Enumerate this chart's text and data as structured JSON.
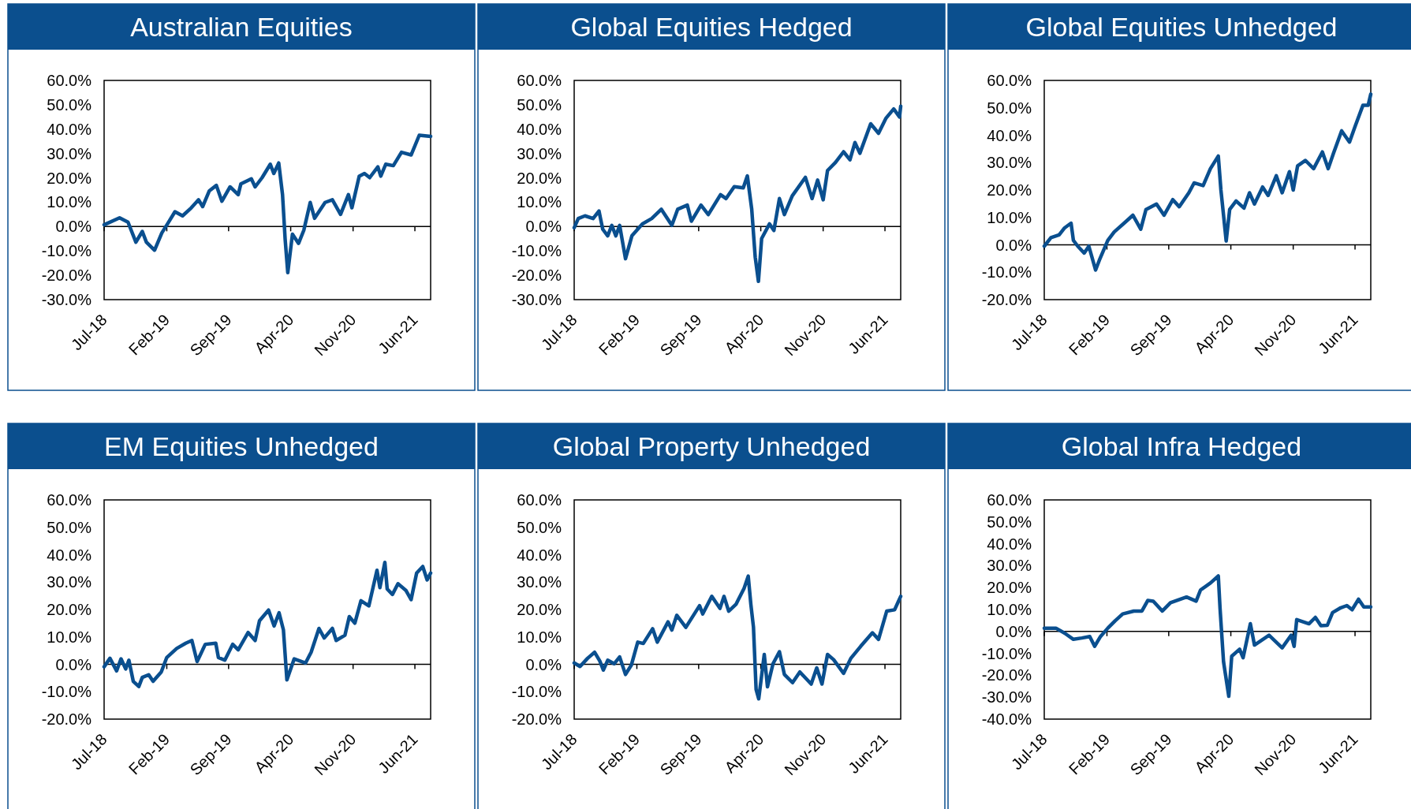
{
  "chart_data": [
    {
      "type": "line",
      "title": "Australian Equities",
      "xlim": [
        "2018-07-01",
        "2021-07-25"
      ],
      "ylim": [
        -30,
        60
      ],
      "xticks": [
        {
          "value": "2018-07-01",
          "label": "Jul-18"
        },
        {
          "value": "2019-02-01",
          "label": "Feb-19"
        },
        {
          "value": "2019-09-01",
          "label": "Sep-19"
        },
        {
          "value": "2020-04-01",
          "label": "Apr-20"
        },
        {
          "value": "2020-11-01",
          "label": "Nov-20"
        },
        {
          "value": "2021-06-01",
          "label": "Jun-21"
        }
      ],
      "yticks": [
        {
          "value": -30,
          "label": "-30.0%"
        },
        {
          "value": -20,
          "label": "-20.0%"
        },
        {
          "value": -10,
          "label": "-10.0%"
        },
        {
          "value": 0,
          "label": "0.0%"
        },
        {
          "value": 10,
          "label": "10.0%"
        },
        {
          "value": 20,
          "label": "20.0%"
        },
        {
          "value": 30,
          "label": "30.0%"
        },
        {
          "value": 40,
          "label": "40.0%"
        },
        {
          "value": 50,
          "label": "50.0%"
        },
        {
          "value": 60,
          "label": "60.0%"
        }
      ],
      "x": [
        "2018-07-01",
        "2018-08-23",
        "2018-09-21",
        "2018-10-18",
        "2018-11-09",
        "2018-11-23",
        "2018-12-21",
        "2019-01-15",
        "2019-02-04",
        "2019-03-01",
        "2019-03-27",
        "2019-04-26",
        "2019-05-21",
        "2019-06-04",
        "2019-06-27",
        "2019-07-21",
        "2019-08-09",
        "2019-09-06",
        "2019-10-04",
        "2019-10-13",
        "2019-11-18",
        "2019-12-01",
        "2019-12-25",
        "2020-01-22",
        "2020-02-03",
        "2020-02-20",
        "2020-03-04",
        "2020-03-13",
        "2020-03-22",
        "2020-04-07",
        "2020-04-28",
        "2020-05-16",
        "2020-06-07",
        "2020-06-22",
        "2020-07-28",
        "2020-08-22",
        "2020-09-19",
        "2020-10-16",
        "2020-10-28",
        "2020-11-22",
        "2020-12-10",
        "2020-12-28",
        "2021-01-25",
        "2021-02-04",
        "2021-02-21",
        "2021-03-19",
        "2021-04-16",
        "2021-05-19",
        "2021-06-16",
        "2021-07-25"
      ],
      "series": [
        {
          "color": "#0a4f8f",
          "values": [
            0.7,
            3.6,
            1.8,
            -6.4,
            -2,
            -6.4,
            -9.7,
            -2.6,
            1.2,
            6.1,
            4.4,
            7.7,
            11,
            8.2,
            14.7,
            16.9,
            10.4,
            16.3,
            13.1,
            17.5,
            19.6,
            16.3,
            20.1,
            25.6,
            21.8,
            26.1,
            13.1,
            -5.3,
            -18.9,
            -3.1,
            -6.9,
            -1.5,
            9.9,
            3.4,
            9.9,
            11,
            5,
            13.1,
            7.7,
            20.7,
            21.8,
            20.1,
            24.5,
            20.7,
            25.6,
            25,
            30.5,
            29.4,
            37.5,
            37
          ]
        }
      ]
    },
    {
      "type": "line",
      "title": "Global Equities Hedged",
      "xlim": [
        "2018-07-01",
        "2021-07-25"
      ],
      "ylim": [
        -30,
        60
      ],
      "xticks": [
        {
          "value": "2018-07-01",
          "label": "Jul-18"
        },
        {
          "value": "2019-02-01",
          "label": "Feb-19"
        },
        {
          "value": "2019-09-01",
          "label": "Sep-19"
        },
        {
          "value": "2020-04-01",
          "label": "Apr-20"
        },
        {
          "value": "2020-11-01",
          "label": "Nov-20"
        },
        {
          "value": "2021-06-01",
          "label": "Jun-21"
        }
      ],
      "yticks": [
        {
          "value": -30,
          "label": "-30.0%"
        },
        {
          "value": -20,
          "label": "-20.0%"
        },
        {
          "value": -10,
          "label": "-10.0%"
        },
        {
          "value": 0,
          "label": "0.0%"
        },
        {
          "value": 10,
          "label": "10.0%"
        },
        {
          "value": 20,
          "label": "20.0%"
        },
        {
          "value": 30,
          "label": "30.0%"
        },
        {
          "value": 40,
          "label": "40.0%"
        },
        {
          "value": 50,
          "label": "50.0%"
        },
        {
          "value": 60,
          "label": "60.0%"
        }
      ],
      "x": [
        "2018-07-01",
        "2018-07-15",
        "2018-08-07",
        "2018-09-04",
        "2018-09-24",
        "2018-10-07",
        "2018-10-24",
        "2018-11-07",
        "2018-11-21",
        "2018-12-04",
        "2018-12-24",
        "2019-01-15",
        "2019-02-20",
        "2019-03-24",
        "2019-04-26",
        "2019-06-01",
        "2019-06-21",
        "2019-07-24",
        "2019-08-07",
        "2019-09-09",
        "2019-10-04",
        "2019-11-15",
        "2019-12-04",
        "2020-01-01",
        "2020-02-01",
        "2020-02-15",
        "2020-03-01",
        "2020-03-13",
        "2020-03-24",
        "2020-04-04",
        "2020-05-01",
        "2020-05-16",
        "2020-06-04",
        "2020-06-21",
        "2020-07-18",
        "2020-09-01",
        "2020-09-24",
        "2020-10-13",
        "2020-11-01",
        "2020-11-16",
        "2020-12-13",
        "2021-01-10",
        "2021-02-01",
        "2021-02-18",
        "2021-03-07",
        "2021-04-13",
        "2021-05-10",
        "2021-06-04",
        "2021-07-01",
        "2021-07-21",
        "2021-07-25"
      ],
      "series": [
        {
          "color": "#0a4f8f",
          "values": [
            -0.5,
            3.3,
            4.4,
            3.3,
            6.4,
            -1.1,
            -3.8,
            0.5,
            -3.8,
            0.5,
            -13.2,
            -3.8,
            1.1,
            3.3,
            7.1,
            0.5,
            7.1,
            8.8,
            2.2,
            8.8,
            4.9,
            13.1,
            11.5,
            16.4,
            15.9,
            20.8,
            7.1,
            -12.6,
            -22.5,
            -4.9,
            1.1,
            -1.6,
            11.5,
            4.9,
            12.6,
            20.2,
            11.5,
            19.1,
            11,
            23,
            26.3,
            30.7,
            27.4,
            34.5,
            30.1,
            42.2,
            38.3,
            44.4,
            48.3,
            45,
            49.4
          ]
        }
      ]
    },
    {
      "type": "line",
      "title": "Global Equities Unhedged",
      "xlim": [
        "2018-07-01",
        "2021-07-25"
      ],
      "ylim": [
        -20,
        60
      ],
      "xticks": [
        {
          "value": "2018-07-01",
          "label": "Jul-18"
        },
        {
          "value": "2019-02-01",
          "label": "Feb-19"
        },
        {
          "value": "2019-09-01",
          "label": "Sep-19"
        },
        {
          "value": "2020-04-01",
          "label": "Apr-20"
        },
        {
          "value": "2020-11-01",
          "label": "Nov-20"
        },
        {
          "value": "2021-06-01",
          "label": "Jun-21"
        }
      ],
      "yticks": [
        {
          "value": -20,
          "label": "-20.0%"
        },
        {
          "value": -10,
          "label": "-10.0%"
        },
        {
          "value": 0,
          "label": "0.0%"
        },
        {
          "value": 10,
          "label": "10.0%"
        },
        {
          "value": 20,
          "label": "20.0%"
        },
        {
          "value": 30,
          "label": "30.0%"
        },
        {
          "value": 40,
          "label": "40.0%"
        },
        {
          "value": 50,
          "label": "50.0%"
        },
        {
          "value": 60,
          "label": "60.0%"
        }
      ],
      "x": [
        "2018-07-01",
        "2018-07-24",
        "2018-08-21",
        "2018-09-09",
        "2018-10-01",
        "2018-10-09",
        "2018-10-24",
        "2018-11-15",
        "2018-12-01",
        "2018-12-24",
        "2019-01-06",
        "2019-02-04",
        "2019-02-26",
        "2019-04-01",
        "2019-05-01",
        "2019-05-28",
        "2019-06-15",
        "2019-07-21",
        "2019-08-16",
        "2019-09-15",
        "2019-10-07",
        "2019-11-09",
        "2019-11-27",
        "2019-12-28",
        "2020-01-22",
        "2020-02-18",
        "2020-02-27",
        "2020-03-07",
        "2020-03-16",
        "2020-03-28",
        "2020-04-19",
        "2020-05-16",
        "2020-06-04",
        "2020-06-21",
        "2020-07-19",
        "2020-08-07",
        "2020-09-04",
        "2020-09-24",
        "2020-10-19",
        "2020-11-01",
        "2020-11-16",
        "2020-12-13",
        "2021-01-10",
        "2021-02-09",
        "2021-03-01",
        "2021-03-19",
        "2021-04-16",
        "2021-05-13",
        "2021-06-01",
        "2021-06-28",
        "2021-07-16",
        "2021-07-25"
      ],
      "series": [
        {
          "color": "#0a4f8f",
          "values": [
            -0.5,
            2.6,
            3.6,
            6.2,
            7.9,
            1.6,
            -0.5,
            -3,
            -0.5,
            -9.2,
            -5.6,
            1.6,
            4.7,
            7.9,
            10.8,
            5.7,
            12.9,
            14.9,
            10.8,
            16.5,
            13.9,
            19,
            22.6,
            21.6,
            27.8,
            32.4,
            20,
            10.8,
            1.4,
            12.9,
            16,
            13.4,
            19,
            14.9,
            21.1,
            18,
            25.2,
            19,
            26.7,
            20,
            28.8,
            30.8,
            27.8,
            33.9,
            27.8,
            33.4,
            41.6,
            37.5,
            43.2,
            50.9,
            50.9,
            55
          ]
        }
      ]
    },
    {
      "type": "line",
      "title": "EM Equities Unhedged",
      "xlim": [
        "2018-07-01",
        "2021-07-25"
      ],
      "ylim": [
        -20,
        60
      ],
      "xticks": [
        {
          "value": "2018-07-01",
          "label": "Jul-18"
        },
        {
          "value": "2019-02-01",
          "label": "Feb-19"
        },
        {
          "value": "2019-09-01",
          "label": "Sep-19"
        },
        {
          "value": "2020-04-01",
          "label": "Apr-20"
        },
        {
          "value": "2020-11-01",
          "label": "Nov-20"
        },
        {
          "value": "2021-06-01",
          "label": "Jun-21"
        }
      ],
      "yticks": [
        {
          "value": -20,
          "label": "-20.0%"
        },
        {
          "value": -10,
          "label": "-10.0%"
        },
        {
          "value": 0,
          "label": "0.0%"
        },
        {
          "value": 10,
          "label": "10.0%"
        },
        {
          "value": 20,
          "label": "20.0%"
        },
        {
          "value": 30,
          "label": "30.0%"
        },
        {
          "value": 40,
          "label": "40.0%"
        },
        {
          "value": 50,
          "label": "50.0%"
        },
        {
          "value": 60,
          "label": "60.0%"
        }
      ],
      "x": [
        "2018-07-01",
        "2018-07-21",
        "2018-08-13",
        "2018-08-28",
        "2018-09-13",
        "2018-09-24",
        "2018-10-09",
        "2018-10-28",
        "2018-11-09",
        "2018-12-01",
        "2018-12-16",
        "2019-01-13",
        "2019-02-01",
        "2019-03-07",
        "2019-04-07",
        "2019-04-28",
        "2019-05-16",
        "2019-06-13",
        "2019-07-19",
        "2019-07-28",
        "2019-08-19",
        "2019-09-15",
        "2019-10-04",
        "2019-11-07",
        "2019-12-01",
        "2019-12-16",
        "2020-01-16",
        "2020-02-04",
        "2020-02-21",
        "2020-03-07",
        "2020-03-19",
        "2020-04-13",
        "2020-05-22",
        "2020-06-10",
        "2020-07-07",
        "2020-07-25",
        "2020-08-22",
        "2020-09-04",
        "2020-10-04",
        "2020-10-19",
        "2020-11-07",
        "2020-11-28",
        "2020-12-25",
        "2021-01-22",
        "2021-02-01",
        "2021-02-18",
        "2021-02-26",
        "2021-03-16",
        "2021-04-04",
        "2021-05-01",
        "2021-05-19",
        "2021-06-07",
        "2021-06-28",
        "2021-07-13",
        "2021-07-25"
      ],
      "series": [
        {
          "color": "#0a4f8f",
          "values": [
            -0.9,
            2.2,
            -2.4,
            2,
            -1.7,
            1.5,
            -6.2,
            -8.1,
            -4.8,
            -3.8,
            -6.2,
            -2.8,
            2.5,
            5.8,
            7.7,
            8.7,
            1,
            7.3,
            7.7,
            2.5,
            1.5,
            7.3,
            5.3,
            11.6,
            8.7,
            15.9,
            19.8,
            14,
            18.8,
            12.6,
            -5.7,
            2,
            0.5,
            4.4,
            13.1,
            9.6,
            13.1,
            8.7,
            10.6,
            17.4,
            15,
            23.2,
            21.3,
            34.3,
            28,
            37.2,
            27.5,
            25.5,
            29.4,
            27,
            23.6,
            33.3,
            35.7,
            30.8,
            33.3
          ]
        }
      ]
    },
    {
      "type": "line",
      "title": "Global Property Unhedged",
      "xlim": [
        "2018-07-01",
        "2021-07-25"
      ],
      "ylim": [
        -20,
        60
      ],
      "xticks": [
        {
          "value": "2018-07-01",
          "label": "Jul-18"
        },
        {
          "value": "2019-02-01",
          "label": "Feb-19"
        },
        {
          "value": "2019-09-01",
          "label": "Sep-19"
        },
        {
          "value": "2020-04-01",
          "label": "Apr-20"
        },
        {
          "value": "2020-11-01",
          "label": "Nov-20"
        },
        {
          "value": "2021-06-01",
          "label": "Jun-21"
        }
      ],
      "yticks": [
        {
          "value": -20,
          "label": "-20.0%"
        },
        {
          "value": -10,
          "label": "-10.0%"
        },
        {
          "value": 0,
          "label": "0.0%"
        },
        {
          "value": 10,
          "label": "10.0%"
        },
        {
          "value": 20,
          "label": "20.0%"
        },
        {
          "value": 30,
          "label": "30.0%"
        },
        {
          "value": 40,
          "label": "40.0%"
        },
        {
          "value": 50,
          "label": "50.0%"
        },
        {
          "value": 60,
          "label": "60.0%"
        }
      ],
      "x": [
        "2018-07-01",
        "2018-07-21",
        "2018-08-16",
        "2018-09-09",
        "2018-09-27",
        "2018-10-09",
        "2018-10-24",
        "2018-11-15",
        "2018-12-04",
        "2018-12-24",
        "2019-01-13",
        "2019-02-04",
        "2019-02-23",
        "2019-03-27",
        "2019-04-12",
        "2019-05-19",
        "2019-06-01",
        "2019-06-18",
        "2019-07-19",
        "2019-09-04",
        "2019-09-15",
        "2019-10-16",
        "2019-11-13",
        "2019-11-27",
        "2019-12-13",
        "2020-01-07",
        "2020-02-04",
        "2020-02-18",
        "2020-02-27",
        "2020-03-07",
        "2020-03-16",
        "2020-03-25",
        "2020-04-13",
        "2020-04-24",
        "2020-05-13",
        "2020-06-04",
        "2020-06-21",
        "2020-07-19",
        "2020-08-13",
        "2020-09-21",
        "2020-10-10",
        "2020-10-28",
        "2020-11-16",
        "2020-12-07",
        "2021-01-10",
        "2021-02-04",
        "2021-03-10",
        "2021-04-19",
        "2021-05-10",
        "2021-06-07",
        "2021-07-04",
        "2021-07-25"
      ],
      "series": [
        {
          "color": "#0a4f8f",
          "values": [
            0.5,
            -0.8,
            2.2,
            4.4,
            1.2,
            -2.1,
            1.5,
            0.2,
            2.7,
            -3.7,
            -0.3,
            8.1,
            7.6,
            13,
            8.1,
            15.5,
            12.5,
            17.9,
            13.5,
            21.4,
            18.4,
            24.8,
            20.4,
            24.8,
            19.4,
            21.9,
            27.8,
            32.2,
            21.9,
            13.5,
            -9.2,
            -12.6,
            3.6,
            -8.2,
            0.2,
            4.6,
            -3.7,
            -6.7,
            -2.8,
            -7.2,
            -1.3,
            -7.2,
            3.6,
            1.7,
            -3.3,
            2.2,
            6.6,
            11.5,
            9.1,
            19.4,
            19.9,
            24.8
          ]
        }
      ]
    },
    {
      "type": "line",
      "title": "Global Infra Hedged",
      "xlim": [
        "2018-07-01",
        "2021-07-25"
      ],
      "ylim": [
        -40,
        60
      ],
      "xticks": [
        {
          "value": "2018-07-01",
          "label": "Jul-18"
        },
        {
          "value": "2019-02-01",
          "label": "Feb-19"
        },
        {
          "value": "2019-09-01",
          "label": "Sep-19"
        },
        {
          "value": "2020-04-01",
          "label": "Apr-20"
        },
        {
          "value": "2020-11-01",
          "label": "Nov-20"
        },
        {
          "value": "2021-06-01",
          "label": "Jun-21"
        }
      ],
      "yticks": [
        {
          "value": -40,
          "label": "-40.0%"
        },
        {
          "value": -30,
          "label": "-30.0%"
        },
        {
          "value": -20,
          "label": "-20.0%"
        },
        {
          "value": -10,
          "label": "-10.0%"
        },
        {
          "value": 0,
          "label": "0.0%"
        },
        {
          "value": 10,
          "label": "10.0%"
        },
        {
          "value": 20,
          "label": "20.0%"
        },
        {
          "value": 30,
          "label": "30.0%"
        },
        {
          "value": 40,
          "label": "40.0%"
        },
        {
          "value": 50,
          "label": "50.0%"
        },
        {
          "value": 60,
          "label": "60.0%"
        }
      ],
      "x": [
        "2018-07-01",
        "2018-08-10",
        "2018-09-09",
        "2018-10-09",
        "2018-11-07",
        "2018-12-04",
        "2018-12-21",
        "2019-01-10",
        "2019-02-04",
        "2019-03-01",
        "2019-03-27",
        "2019-05-04",
        "2019-06-01",
        "2019-06-21",
        "2019-07-10",
        "2019-08-10",
        "2019-09-07",
        "2019-11-01",
        "2019-12-04",
        "2019-12-19",
        "2020-01-22",
        "2020-02-18",
        "2020-02-24",
        "2020-03-07",
        "2020-03-25",
        "2020-04-04",
        "2020-05-01",
        "2020-05-13",
        "2020-06-07",
        "2020-06-21",
        "2020-08-10",
        "2020-09-24",
        "2020-10-25",
        "2020-11-04",
        "2020-11-13",
        "2020-12-25",
        "2021-01-16",
        "2021-02-04",
        "2021-02-26",
        "2021-03-16",
        "2021-04-13",
        "2021-05-04",
        "2021-05-22",
        "2021-06-13",
        "2021-07-01",
        "2021-07-25"
      ],
      "series": [
        {
          "color": "#0a4f8f",
          "values": [
            1.5,
            1.5,
            -0.8,
            -3.6,
            -3,
            -2.3,
            -6.8,
            -2.3,
            1.5,
            4.8,
            8,
            9.3,
            9.3,
            14.1,
            13.8,
            9.3,
            13.1,
            15.7,
            13.8,
            18.9,
            22.1,
            25.3,
            10.5,
            -13.9,
            -29.6,
            -11.3,
            -8.1,
            -12,
            3.5,
            -6.2,
            -1.7,
            -7.5,
            -1.7,
            -6.8,
            5.4,
            3.5,
            6.4,
            2.6,
            2.8,
            8.6,
            10.8,
            11.8,
            9.9,
            14.7,
            11.2,
            11.2
          ]
        }
      ]
    }
  ]
}
